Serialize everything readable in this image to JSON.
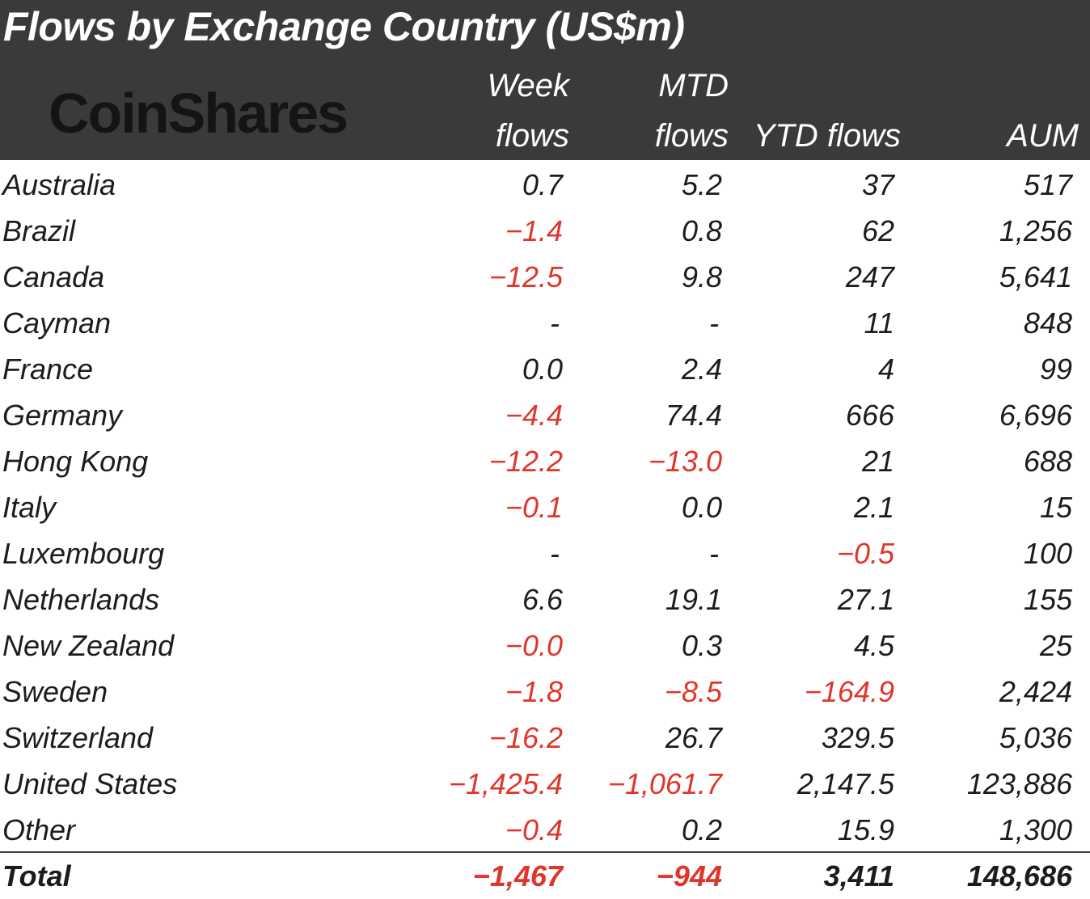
{
  "title": "Flows by Exchange Country (US$m)",
  "logo_text": "CoinShares",
  "columns": {
    "week_line1": "Week",
    "week_line2": "flows",
    "mtd_line1": "MTD",
    "mtd_line2": "flows",
    "ytd": "YTD flows",
    "aum": "AUM"
  },
  "colors": {
    "header_bg": "#3a3a3a",
    "negative": "#e0352b",
    "text": "#1c1c1c"
  },
  "chart_data": {
    "type": "table",
    "title": "Flows by Exchange Country (US$m)",
    "headers": [
      "",
      "Week flows",
      "MTD flows",
      "YTD flows",
      "AUM"
    ],
    "rows": [
      [
        "Australia",
        "0.7",
        "5.2",
        "37",
        "517"
      ],
      [
        "Brazil",
        "-1.4",
        "0.8",
        "62",
        "1,256"
      ],
      [
        "Canada",
        "-12.5",
        "9.8",
        "247",
        "5,641"
      ],
      [
        "Cayman",
        "-",
        "-",
        "11",
        "848"
      ],
      [
        "France",
        "0.0",
        "2.4",
        "4",
        "99"
      ],
      [
        "Germany",
        "-4.4",
        "74.4",
        "666",
        "6,696"
      ],
      [
        "Hong Kong",
        "-12.2",
        "-13.0",
        "21",
        "688"
      ],
      [
        "Italy",
        "-0.1",
        "0.0",
        "2.1",
        "15"
      ],
      [
        "Luxembourg",
        "-",
        "-",
        "-0.5",
        "100"
      ],
      [
        "Netherlands",
        "6.6",
        "19.1",
        "27.1",
        "155"
      ],
      [
        "New Zealand",
        "-0.0",
        "0.3",
        "4.5",
        "25"
      ],
      [
        "Sweden",
        "-1.8",
        "-8.5",
        "-164.9",
        "2,424"
      ],
      [
        "Switzerland",
        "-16.2",
        "26.7",
        "329.5",
        "5,036"
      ],
      [
        "United States",
        "-1,425.4",
        "-1,061.7",
        "2,147.5",
        "123,886"
      ],
      [
        "Other",
        "-0.4",
        "0.2",
        "15.9",
        "1,300"
      ]
    ],
    "total": [
      "Total",
      "-1,467",
      "-944",
      "3,411",
      "148,686"
    ]
  }
}
